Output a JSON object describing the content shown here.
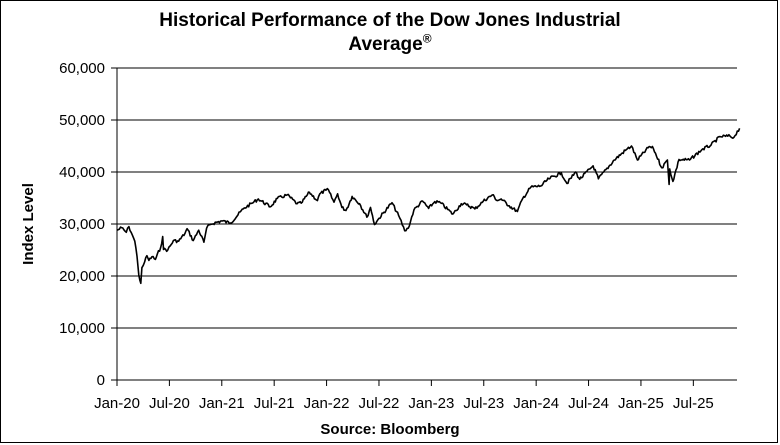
{
  "chart_data": {
    "type": "line",
    "title_line1": "Historical  Performance  of the Dow Jones Industrial",
    "title_line2": "Average",
    "title_mark": "®",
    "ylabel": "Index Level",
    "xlabel": "Source: Bloomberg",
    "ylim": [
      0,
      60000
    ],
    "yticks": [
      0,
      10000,
      20000,
      30000,
      40000,
      50000,
      60000
    ],
    "ytick_labels": [
      "0",
      "10,000",
      "20,000",
      "30,000",
      "40,000",
      "50,000",
      "60,000"
    ],
    "xlim": [
      "2020-01",
      "2025-12"
    ],
    "xtick_labels": [
      "Jan-20",
      "Jul-20",
      "Jan-21",
      "Jul-21",
      "Jan-22",
      "Jul-22",
      "Jan-23",
      "Jul-23",
      "Jan-24",
      "Jul-24",
      "Jan-25",
      "Jul-25"
    ],
    "grid": true,
    "series": [
      {
        "color": "#000000",
        "points": [
          [
            "2020-01-02",
            28800
          ],
          [
            "2020-01-17",
            29300
          ],
          [
            "2020-02-03",
            28400
          ],
          [
            "2020-02-12",
            29500
          ],
          [
            "2020-02-24",
            27900
          ],
          [
            "2020-03-02",
            26700
          ],
          [
            "2020-03-10",
            23800
          ],
          [
            "2020-03-16",
            20200
          ],
          [
            "2020-03-23",
            18600
          ],
          [
            "2020-03-27",
            21600
          ],
          [
            "2020-04-06",
            22700
          ],
          [
            "2020-04-14",
            23900
          ],
          [
            "2020-04-21",
            23000
          ],
          [
            "2020-05-01",
            23700
          ],
          [
            "2020-05-13",
            23200
          ],
          [
            "2020-06-01",
            25500
          ],
          [
            "2020-06-08",
            27600
          ],
          [
            "2020-06-11",
            25100
          ],
          [
            "2020-06-26",
            25000
          ],
          [
            "2020-07-15",
            26800
          ],
          [
            "2020-08-03",
            26700
          ],
          [
            "2020-08-25",
            28200
          ],
          [
            "2020-09-02",
            29100
          ],
          [
            "2020-09-23",
            26800
          ],
          [
            "2020-10-12",
            28800
          ],
          [
            "2020-10-30",
            26500
          ],
          [
            "2020-11-09",
            29200
          ],
          [
            "2020-11-24",
            30000
          ],
          [
            "2020-12-31",
            30600
          ],
          [
            "2021-02-01",
            30200
          ],
          [
            "2021-03-15",
            32900
          ],
          [
            "2021-04-15",
            34000
          ],
          [
            "2021-05-07",
            34800
          ],
          [
            "2021-06-18",
            33300
          ],
          [
            "2021-07-12",
            34900
          ],
          [
            "2021-08-16",
            35600
          ],
          [
            "2021-09-20",
            33900
          ],
          [
            "2021-10-04",
            34000
          ],
          [
            "2021-11-02",
            36100
          ],
          [
            "2021-11-30",
            34500
          ],
          [
            "2021-12-08",
            35800
          ],
          [
            "2021-12-29",
            36500
          ],
          [
            "2022-01-04",
            36800
          ],
          [
            "2022-01-27",
            34200
          ],
          [
            "2022-02-09",
            35800
          ],
          [
            "2022-02-24",
            33200
          ],
          [
            "2022-03-08",
            32600
          ],
          [
            "2022-03-29",
            35300
          ],
          [
            "2022-04-25",
            33900
          ],
          [
            "2022-05-20",
            31300
          ],
          [
            "2022-06-02",
            33200
          ],
          [
            "2022-06-16",
            29900
          ],
          [
            "2022-07-01",
            31100
          ],
          [
            "2022-08-16",
            34100
          ],
          [
            "2022-09-13",
            31100
          ],
          [
            "2022-09-30",
            28700
          ],
          [
            "2022-10-12",
            29200
          ],
          [
            "2022-11-01",
            32700
          ],
          [
            "2022-12-01",
            34400
          ],
          [
            "2022-12-22",
            33000
          ],
          [
            "2023-01-13",
            34300
          ],
          [
            "2023-02-02",
            34100
          ],
          [
            "2023-03-15",
            31900
          ],
          [
            "2023-04-14",
            33900
          ],
          [
            "2023-05-02",
            33700
          ],
          [
            "2023-05-31",
            32900
          ],
          [
            "2023-06-30",
            34400
          ],
          [
            "2023-07-31",
            35600
          ],
          [
            "2023-08-18",
            34500
          ],
          [
            "2023-09-01",
            34800
          ],
          [
            "2023-09-29",
            33500
          ],
          [
            "2023-10-27",
            32400
          ],
          [
            "2023-11-15",
            34900
          ],
          [
            "2023-12-13",
            37100
          ],
          [
            "2024-01-17",
            37300
          ],
          [
            "2024-02-15",
            38700
          ],
          [
            "2024-03-28",
            39800
          ],
          [
            "2024-04-17",
            37800
          ],
          [
            "2024-05-17",
            40000
          ],
          [
            "2024-05-31",
            38600
          ],
          [
            "2024-07-17",
            41200
          ],
          [
            "2024-08-05",
            38700
          ],
          [
            "2024-09-30",
            42300
          ],
          [
            "2024-11-11",
            44300
          ],
          [
            "2024-11-29",
            45000
          ],
          [
            "2024-12-19",
            42300
          ],
          [
            "2025-01-30",
            44900
          ],
          [
            "2025-02-14",
            44500
          ],
          [
            "2025-03-13",
            40800
          ],
          [
            "2025-04-02",
            42300
          ],
          [
            "2025-04-08",
            37600
          ],
          [
            "2025-04-10",
            40600
          ],
          [
            "2025-04-21",
            38200
          ],
          [
            "2025-05-12",
            42400
          ],
          [
            "2025-06-18",
            42300
          ],
          [
            "2025-07-31",
            44300
          ],
          [
            "2025-09-02",
            45200
          ],
          [
            "2025-10-03",
            46800
          ],
          [
            "2025-11-07",
            46900
          ],
          [
            "2025-11-17",
            46500
          ],
          [
            "2025-12-10",
            48400
          ]
        ]
      }
    ]
  }
}
